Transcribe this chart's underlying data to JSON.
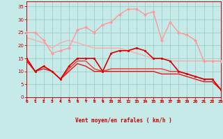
{
  "xlabel": "Vent moyen/en rafales ( km/h )",
  "bg_color": "#c5eae7",
  "grid_color": "#9dcfca",
  "x": [
    0,
    1,
    2,
    3,
    4,
    5,
    6,
    7,
    8,
    9,
    10,
    11,
    12,
    13,
    14,
    15,
    16,
    17,
    18,
    19,
    20,
    21,
    22,
    23
  ],
  "ylim": [
    0,
    37
  ],
  "xlim": [
    0,
    23
  ],
  "yticks": [
    0,
    5,
    10,
    15,
    20,
    25,
    30,
    35
  ],
  "lines": [
    {
      "y": [
        23,
        22,
        21,
        19,
        21,
        22,
        21,
        20,
        19,
        19,
        19,
        19,
        18,
        17,
        16,
        15,
        15,
        14,
        14,
        14,
        14,
        14,
        14,
        14
      ],
      "color": "#ffaaaa",
      "lw": 1.0,
      "marker": null,
      "zorder": 2
    },
    {
      "y": [
        25,
        25,
        22,
        17,
        18,
        19,
        26,
        27,
        25,
        28,
        29,
        32,
        34,
        34,
        32,
        33,
        22,
        29,
        25,
        24,
        22,
        14,
        14,
        14
      ],
      "color": "#ff9999",
      "lw": 1.0,
      "marker": "D",
      "ms": 2.0,
      "zorder": 3
    },
    {
      "y": [
        15,
        10,
        12,
        10,
        7,
        12,
        15,
        15,
        15,
        10,
        17,
        18,
        18,
        19,
        18,
        15,
        15,
        14,
        10,
        9,
        8,
        7,
        7,
        3
      ],
      "color": "#dd0000",
      "lw": 1.2,
      "marker": "s",
      "ms": 2.0,
      "zorder": 4
    },
    {
      "y": [
        14,
        10,
        12,
        10,
        7,
        11,
        14,
        14,
        11,
        10,
        11,
        11,
        11,
        11,
        11,
        11,
        11,
        10,
        10,
        9,
        8,
        7,
        7,
        3
      ],
      "color": "#ff3333",
      "lw": 1.0,
      "marker": null,
      "zorder": 2
    },
    {
      "y": [
        14,
        10,
        11,
        10,
        7,
        10,
        13,
        12,
        10,
        10,
        10,
        10,
        10,
        10,
        10,
        10,
        9,
        9,
        9,
        8,
        7,
        6,
        6,
        3
      ],
      "color": "#ee1111",
      "lw": 1.0,
      "marker": null,
      "zorder": 2
    }
  ],
  "arrow_color": "#cc0000",
  "tick_color": "#cc0000",
  "label_color": "#cc0000",
  "arrow_angles": [
    -135,
    -130,
    -130,
    -128,
    -125,
    -122,
    -120,
    -118,
    -115,
    -112,
    -110,
    -108,
    -105,
    -103,
    -100,
    -98,
    -95,
    -93,
    -92,
    -91,
    -91,
    -90,
    -90,
    -90
  ]
}
